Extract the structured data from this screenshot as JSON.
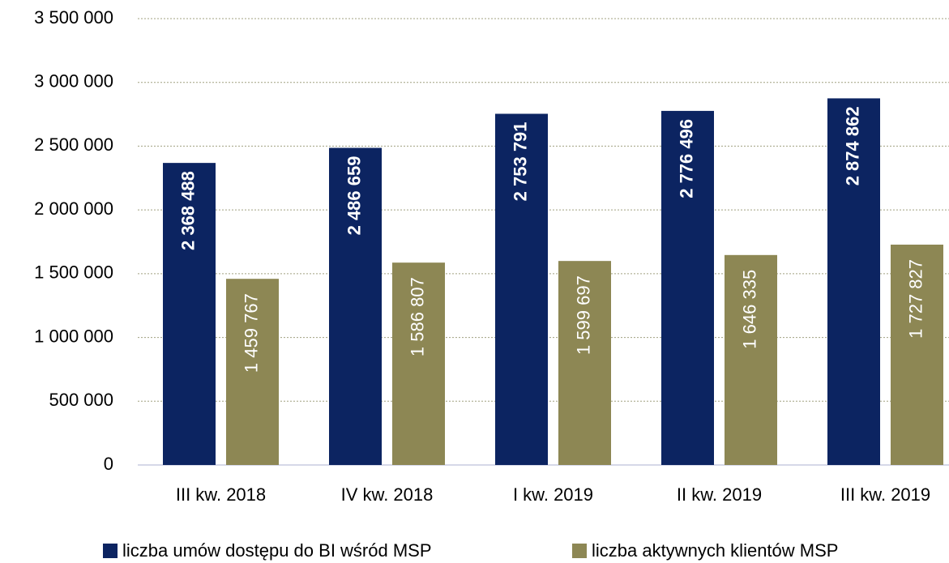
{
  "chart_data": {
    "type": "bar",
    "categories": [
      "III kw. 2018",
      "IV kw. 2018",
      "I kw. 2019",
      "II kw. 2019",
      "III kw. 2019"
    ],
    "series": [
      {
        "name": "liczba umów dostępu do BI wśród MSP",
        "color": "#0c2461",
        "values": [
          2368488,
          2486659,
          2753791,
          2776496,
          2874862
        ],
        "value_labels": [
          "2 368 488",
          "2 486 659",
          "2 753 791",
          "2 776 496",
          "2 874 862"
        ]
      },
      {
        "name": "liczba aktywnych klientów MSP",
        "color": "#8d8754",
        "values": [
          1459767,
          1586807,
          1599697,
          1646335,
          1727827
        ],
        "value_labels": [
          "1 459 767",
          "1 586 807",
          "1 599 697",
          "1 646 335",
          "1 727 827"
        ]
      }
    ],
    "ylim": [
      0,
      3500000
    ],
    "yticks": [
      0,
      {
        "value": 500000,
        "label": "500 000"
      },
      {
        "value": 1000000,
        "label": "1 000 000"
      },
      {
        "value": 1500000,
        "label": "1 500 000"
      },
      {
        "value": 2000000,
        "label": "2 000 000"
      },
      {
        "value": 2500000,
        "label": "2 500 000"
      },
      {
        "value": 3000000,
        "label": "3 000 000"
      },
      {
        "value": 3500000,
        "label": "3 500 000"
      }
    ],
    "grid": true,
    "legend": "bottom"
  }
}
